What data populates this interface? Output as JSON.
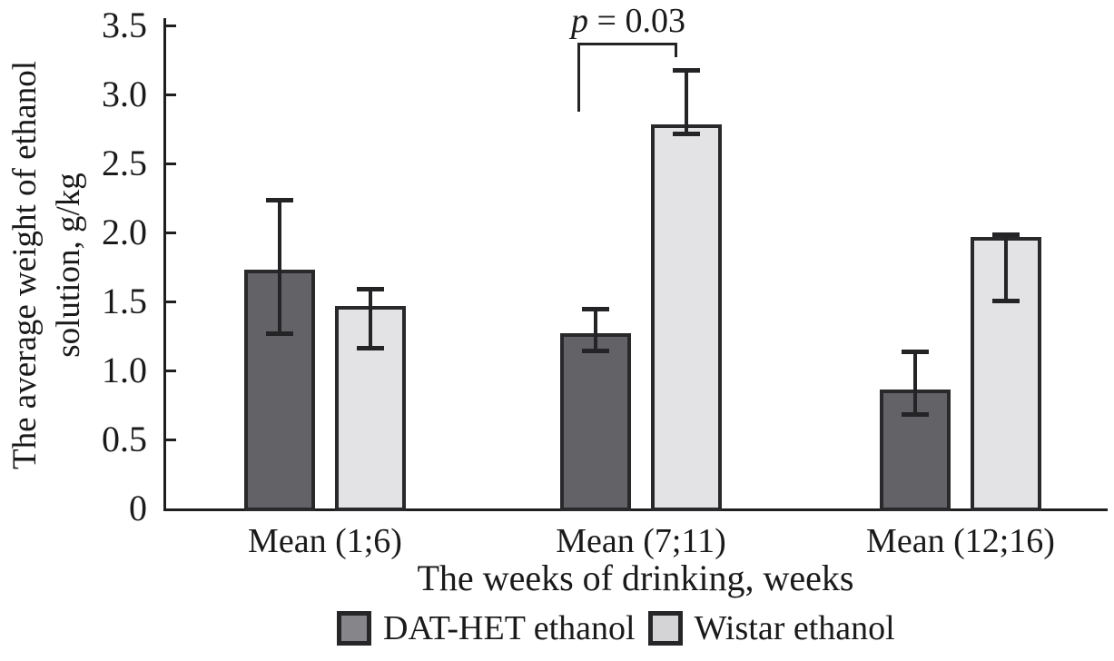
{
  "figure": {
    "background": "#ffffff"
  },
  "colors": {
    "axis": "#1f1f1f",
    "bar_border": "#29292b",
    "error_bar": "#242426",
    "text": "#1a1a1a",
    "dark_series_fill": "#636367",
    "light_series_fill": "#e3e3e5",
    "dark_legend_fill": "#85858a",
    "light_legend_fill": "#d4d4d6"
  },
  "chart_data": {
    "type": "bar",
    "title": "",
    "xlabel": "The weeks of drinking, weeks",
    "ylabel": "The average weight of ethanol solution, g/kg",
    "ylabel_lines": [
      "The average weight of ethanol",
      "solution, g/kg"
    ],
    "categories": [
      "Mean (1;6)",
      "Mean (7;11)",
      "Mean (12;16)"
    ],
    "ylim": [
      0,
      3.5
    ],
    "grid": false,
    "legend_position": "bottom",
    "y_ticks": [
      {
        "label": "0",
        "value": 0
      },
      {
        "label": "0.5",
        "value": 0.5
      },
      {
        "label": "1.0",
        "value": 1.0
      },
      {
        "label": "1.5",
        "value": 1.5
      },
      {
        "label": "2.0",
        "value": 2.0
      },
      {
        "label": "2.5",
        "value": 2.5
      },
      {
        "label": "3.0",
        "value": 3.0
      },
      {
        "label": "3.5",
        "value": 3.5
      }
    ],
    "series": [
      {
        "name": "DAT-HET ethanol",
        "fill": "#636367",
        "legend_fill": "#85858a",
        "values": [
          1.73,
          1.27,
          0.86
        ],
        "error_top": [
          2.24,
          1.45,
          1.14
        ],
        "error_bottom": [
          1.26,
          1.14,
          0.68
        ]
      },
      {
        "name": "Wistar ethanol",
        "fill": "#e3e3e5",
        "legend_fill": "#d4d4d6",
        "values": [
          1.47,
          2.78,
          1.97
        ],
        "error_top": [
          1.59,
          3.18,
          1.99
        ],
        "error_bottom": [
          1.16,
          2.71,
          1.5
        ]
      }
    ],
    "annotation": {
      "label": "p = 0.03",
      "p_italic": "p",
      "rest": " = 0.03",
      "compares": [
        "Mean (7;11) DAT-HET ethanol",
        "Mean (7;11) Wistar ethanol"
      ]
    }
  }
}
